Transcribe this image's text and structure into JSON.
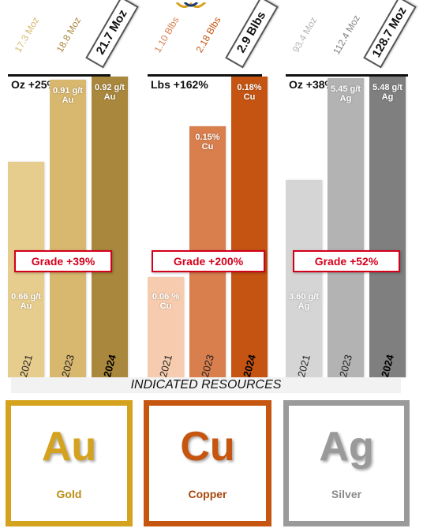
{
  "chart_data": {
    "type": "bar",
    "footer": "INDICATED RESOURCES",
    "groups": [
      {
        "metal": "Gold",
        "symbol": "Au",
        "growth_label": "Oz +25%",
        "grade_change": "Grade +39%",
        "color_top": "#a8893f",
        "color_elem": "#d5a21e",
        "years": [
          "2021",
          "2023",
          "2024"
        ],
        "resource_labels": [
          "17.3 Moz",
          "18.8 Moz",
          "21.7 Moz"
        ],
        "resource_moz": [
          17.3,
          18.8,
          21.7
        ],
        "grades": [
          0.66,
          0.91,
          0.92
        ],
        "grade_labels": [
          "0.66 g/t Au",
          "0.91 g/t Au",
          "0.92 g/t Au"
        ],
        "colors": [
          "#e7cd8d",
          "#d8b76e",
          "#a9873c"
        ]
      },
      {
        "metal": "Copper",
        "symbol": "Cu",
        "growth_label": "Lbs +162%",
        "grade_change": "Grade +200%",
        "color_top": "#c4561a",
        "color_elem": "#c6560f",
        "years": [
          "2021",
          "2023",
          "2024"
        ],
        "resource_labels": [
          "1.10 Blbs",
          "2.18 Blbs",
          "2.9 Blbs"
        ],
        "resource_blbs": [
          1.1,
          2.18,
          2.9
        ],
        "grades": [
          0.06,
          0.15,
          0.18
        ],
        "grade_labels": [
          "0.06 % Cu",
          "0.15% Cu",
          "0.18% Cu"
        ],
        "colors": [
          "#f7ccae",
          "#d97f4e",
          "#c55412"
        ]
      },
      {
        "metal": "Silver",
        "symbol": "Ag",
        "growth_label": "Oz +38%",
        "grade_change": "Grade +52%",
        "color_top": "#7f7f7f",
        "color_elem": "#9a9a9a",
        "years": [
          "2021",
          "2023",
          "2024"
        ],
        "resource_labels": [
          "93.4 Moz",
          "112.4 Moz",
          "128.7 Moz"
        ],
        "resource_moz": [
          93.4,
          112.4,
          128.7
        ],
        "grades": [
          3.6,
          5.45,
          5.48
        ],
        "grade_labels": [
          "3.60 g/t Ag",
          "5.45 g/t Ag",
          "5.48 g/t Ag"
        ],
        "colors": [
          "#d5d5d5",
          "#b3b3b3",
          "#7f7f7f"
        ]
      }
    ]
  }
}
